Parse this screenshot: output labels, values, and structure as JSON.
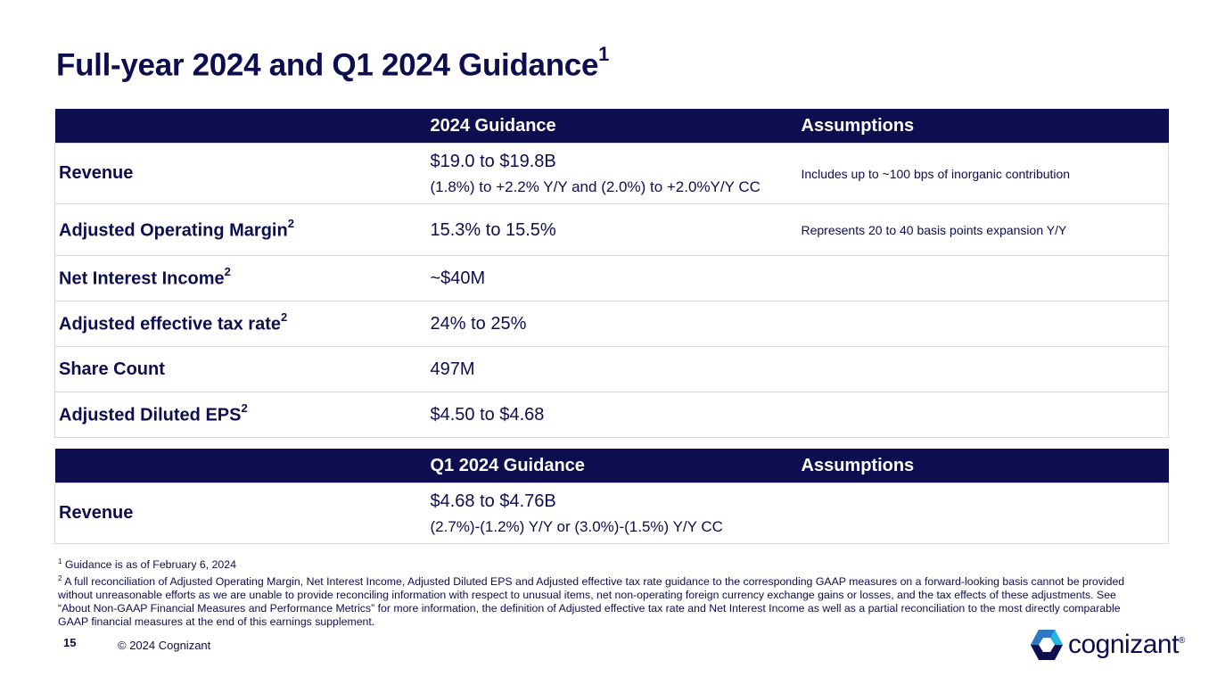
{
  "title": {
    "text": "Full-year 2024 and Q1 2024 Guidance",
    "footnote_ref": "1"
  },
  "fy_table": {
    "headers": [
      "",
      "2024 Guidance",
      "Assumptions"
    ],
    "rows": [
      {
        "metric": "Revenue",
        "sup": "",
        "value": "$19.0 to $19.8B",
        "value_sub": "(1.8%) to +2.2% Y/Y and (2.0%) to +2.0%Y/Y CC",
        "assumption": "Includes up to ~100 bps of inorganic contribution"
      },
      {
        "metric": "Adjusted Operating Margin",
        "sup": "2",
        "value": "15.3% to 15.5%",
        "value_sub": "",
        "assumption": "Represents 20 to 40 basis points expansion Y/Y"
      },
      {
        "metric": "Net Interest Income",
        "sup": "2",
        "value": "~$40M",
        "value_sub": "",
        "assumption": ""
      },
      {
        "metric": "Adjusted effective tax rate",
        "sup": "2",
        "value": "24% to 25%",
        "value_sub": "",
        "assumption": ""
      },
      {
        "metric": "Share Count",
        "sup": "",
        "value": "497M",
        "value_sub": "",
        "assumption": ""
      },
      {
        "metric": "Adjusted Diluted EPS",
        "sup": "2",
        "value": "$4.50 to $4.68",
        "value_sub": "",
        "assumption": ""
      }
    ]
  },
  "q1_table": {
    "headers": [
      "",
      "Q1 2024 Guidance",
      "Assumptions"
    ],
    "rows": [
      {
        "metric": "Revenue",
        "value": "$4.68 to $4.76B",
        "value_sub": "(2.7%)-(1.2%) Y/Y or (3.0%)-(1.5%) Y/Y CC",
        "assumption": ""
      }
    ]
  },
  "footnotes": [
    {
      "num": "1",
      "text": "Guidance is as of February 6, 2024"
    },
    {
      "num": "2",
      "text": "A full reconciliation of Adjusted Operating Margin, Net Interest Income, Adjusted Diluted EPS and Adjusted effective tax rate guidance to the corresponding GAAP measures on a forward-looking basis cannot be provided without unreasonable  efforts as we are unable to provide reconciling information with respect to unusual items, net non-operating foreign currency exchange gains or losses, and the tax effects of these adjustments. See “About Non-GAAP Financial Measures and Performance Metrics” for more information, the definition of Adjusted effective tax rate and Net Interest Income as well as a partial reconciliation to the most directly comparable GAAP financial measures at the end of this earnings supplement."
    }
  ],
  "footer": {
    "page_number": "15",
    "copyright": "© 2024 Cognizant",
    "logo_text": "cognizant",
    "logo_mark": "®"
  },
  "colors": {
    "navy": "#0d0e4f",
    "logo_dark": "#0d0e4f",
    "logo_blue": "#2f78c4",
    "logo_light": "#26b5e8"
  }
}
